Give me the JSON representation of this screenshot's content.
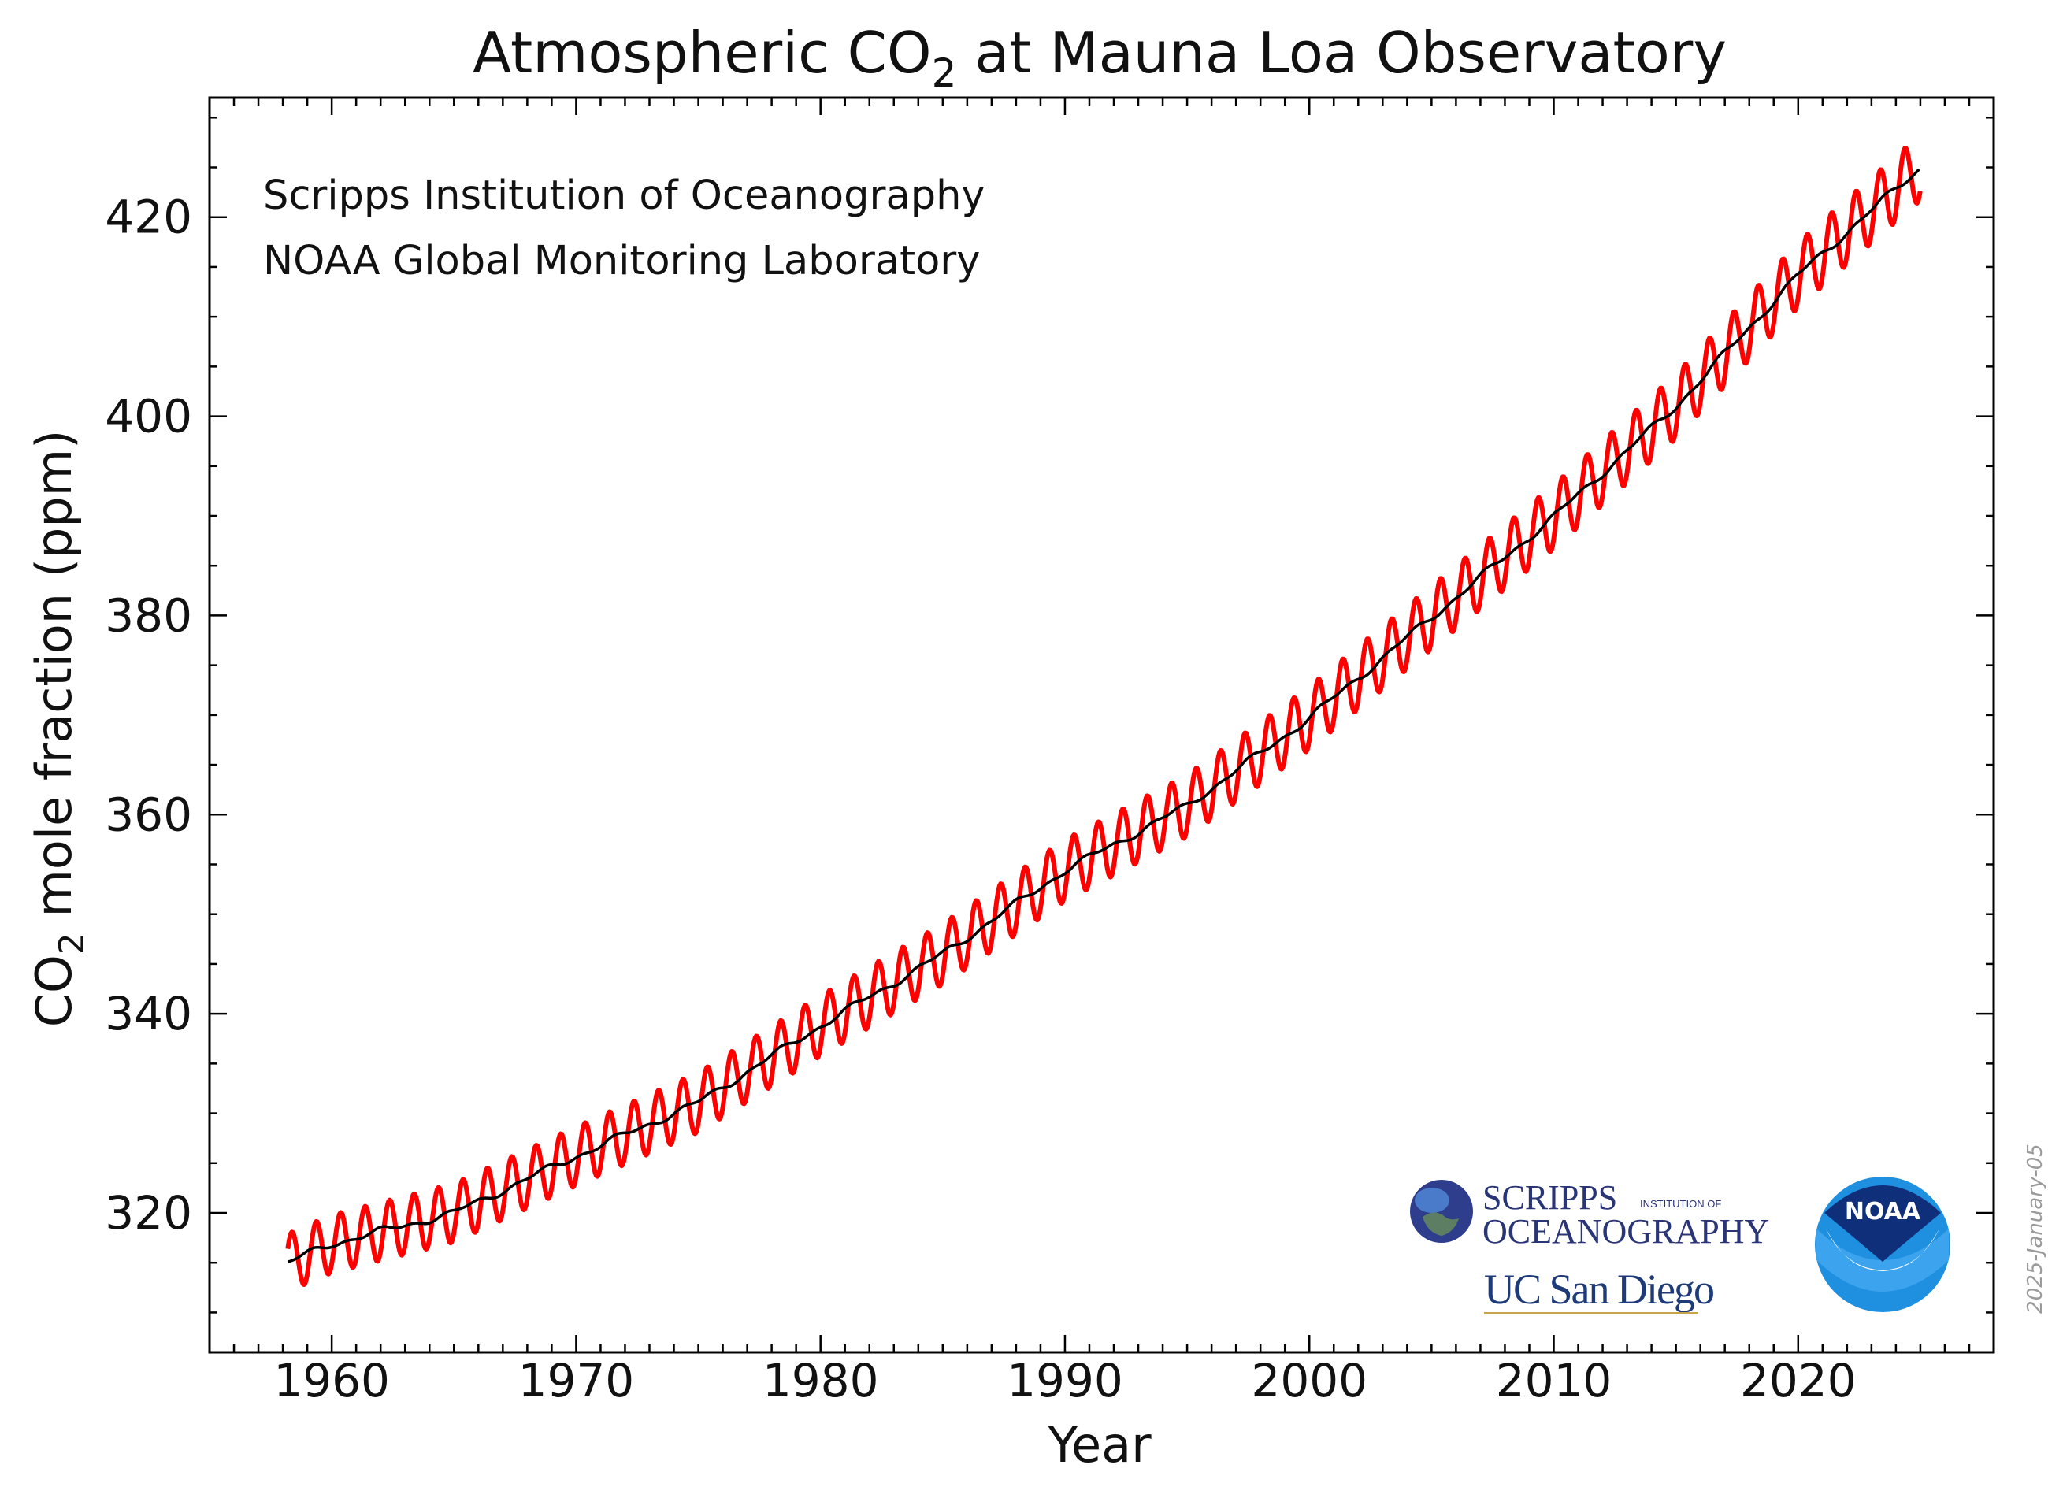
{
  "chart_data": {
    "type": "line",
    "title": "Atmospheric CO",
    "title_subscript": "2",
    "title_suffix": " at Mauna Loa Observatory",
    "xlabel": "Year",
    "ylabel_prefix": "CO",
    "ylabel_subscript": "2",
    "ylabel_suffix": " mole fraction (ppm)",
    "xlim": [
      1955,
      2028
    ],
    "ylim": [
      306,
      432
    ],
    "x_ticks": [
      1960,
      1970,
      1980,
      1990,
      2000,
      2010,
      2020
    ],
    "y_ticks": [
      320,
      340,
      360,
      380,
      400,
      420
    ],
    "grid": false,
    "annotations": [
      "Scripps Institution of Oceanography",
      "NOAA Global Monitoring Laboratory"
    ],
    "date_stamp": "2025-January-05",
    "logos": {
      "scripps_line1": "SCRIPPS",
      "scripps_small": "INSTITUTION OF",
      "scripps_line2": "OCEANOGRAPHY",
      "ucsd": "UC San Diego",
      "noaa": "NOAA"
    },
    "x_start": 1958.2,
    "x_end": 2025.0,
    "trend_anchors": {
      "x": [
        1958.2,
        1960,
        1965,
        1970,
        1975,
        1980,
        1985,
        1990,
        1995,
        2000,
        2005,
        2010,
        2015,
        2020,
        2025.0
      ],
      "y": [
        315.0,
        316.9,
        320.0,
        325.7,
        331.1,
        338.8,
        346.0,
        354.4,
        360.9,
        369.7,
        379.8,
        389.9,
        401.0,
        414.2,
        425.0
      ]
    },
    "seasonal_amplitude": [
      2.9,
      3.3
    ],
    "series": [
      {
        "name": "",
        "role": "monthly-mean",
        "color": "#ff0000"
      },
      {
        "name": "",
        "role": "seasonally-corrected-trend",
        "color": "#000000"
      }
    ]
  }
}
